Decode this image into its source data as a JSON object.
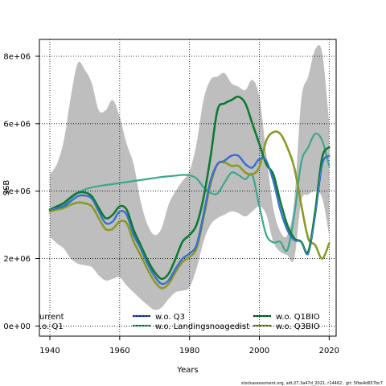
{
  "chart_data": {
    "type": "line",
    "xlabel": "Years",
    "ylabel": "SSB",
    "xlim": [
      1937,
      2022
    ],
    "ylim": [
      -300000,
      8500000
    ],
    "x_ticks": [
      1940,
      1960,
      1980,
      2000,
      2020
    ],
    "x_tick_labels": [
      "1940",
      "1960",
      "1980",
      "2000",
      "2020"
    ],
    "y_ticks": [
      0,
      2000000,
      4000000,
      6000000,
      8000000
    ],
    "y_tick_labels": [
      "0e+00",
      "2e+06",
      "4e+06",
      "6e+06",
      "8e+06"
    ],
    "grid": true,
    "legend_position": "bottom",
    "colors": {
      "band": "#bebebe",
      "current": "#000000",
      "wo_q1": "#000000",
      "wo_q3": "#1c4fc0",
      "wo_landings": "#3aa88e",
      "wo_q1bio": "#0f7a32",
      "wo_q3bio": "#8a9a24"
    },
    "legend": [
      {
        "label": "urrent",
        "color": "#000000"
      },
      {
        "label": ".o. Q1",
        "color": "#000000"
      },
      {
        "label": "w.o. Q3",
        "color": "#1c4fc0"
      },
      {
        "label": "w.o. Landingsnoagedist",
        "color": "#3aa88e"
      },
      {
        "label": "w.o. Q1BIO",
        "color": "#0f7a32"
      },
      {
        "label": "w.o. Q3BIO",
        "color": "#8a9a24"
      }
    ],
    "x": [
      1940,
      1942,
      1944,
      1946,
      1948,
      1950,
      1952,
      1954,
      1956,
      1958,
      1960,
      1962,
      1964,
      1966,
      1968,
      1970,
      1972,
      1974,
      1976,
      1978,
      1980,
      1982,
      1984,
      1986,
      1988,
      1990,
      1992,
      1994,
      1996,
      1998,
      2000,
      2002,
      2004,
      2006,
      2008,
      2010,
      2012,
      2014,
      2016,
      2018,
      2020
    ],
    "band_upper": [
      4500000,
      4800000,
      5500000,
      6800000,
      7800000,
      7600000,
      7200000,
      6400000,
      6400000,
      6700000,
      6200000,
      5400000,
      4800000,
      3700000,
      3000000,
      2700000,
      2900000,
      3600000,
      4000000,
      4300000,
      4600000,
      5400000,
      6700000,
      7300000,
      7400000,
      7500000,
      7200000,
      7100000,
      7000000,
      7300000,
      6800000,
      5100000,
      3500000,
      2800000,
      2700000,
      3700000,
      6700000,
      7400000,
      8200000,
      8100000,
      6000000
    ],
    "band_lower": [
      2650000,
      2450000,
      2300000,
      2000000,
      1850000,
      1800000,
      1750000,
      1500000,
      1350000,
      1400000,
      1450000,
      1200000,
      1000000,
      800000,
      620000,
      480000,
      550000,
      800000,
      1000000,
      1050000,
      1150000,
      1700000,
      2500000,
      3000000,
      3200000,
      3300000,
      3400000,
      3350000,
      3250000,
      3400000,
      3550000,
      3300000,
      2500000,
      2200000,
      2100000,
      2000000,
      3700000,
      3900000,
      4000000,
      3800000,
      2700000
    ],
    "series": [
      {
        "name": "w.o. Landingsnoagedist",
        "values": [
          3400000,
          3480000,
          3600000,
          3780000,
          3950000,
          4050000,
          4110000,
          4150000,
          4180000,
          4210000,
          4240000,
          4270000,
          4300000,
          4330000,
          4360000,
          4390000,
          4420000,
          4440000,
          4460000,
          4480000,
          4470000,
          4380000,
          4120000,
          3950000,
          3930000,
          4250000,
          4550000,
          4480000,
          4350000,
          4480000,
          3550000,
          2700000,
          2480000,
          2500000,
          2250000,
          3300000,
          4850000,
          5300000,
          5700000,
          5500000,
          4750000
        ]
      },
      {
        "name": "w.o. Q3BIO",
        "values": [
          3400000,
          3450000,
          3500000,
          3600000,
          3660000,
          3640000,
          3550000,
          3200000,
          2870000,
          2880000,
          3100000,
          3050000,
          2500000,
          2100000,
          1680000,
          1320000,
          1120000,
          1250000,
          1600000,
          1900000,
          2050000,
          2300000,
          3200000,
          4200000,
          4800000,
          4850000,
          4750000,
          4750000,
          4550000,
          4500000,
          4720000,
          5500000,
          5750000,
          5700000,
          5300000,
          4700000,
          3600000,
          2600000,
          2400000,
          2000000,
          2450000
        ]
      },
      {
        "name": "w.o. Q3",
        "values": [
          3450000,
          3500000,
          3550000,
          3700000,
          3850000,
          3870000,
          3780000,
          3400000,
          3050000,
          3100000,
          3400000,
          3300000,
          2700000,
          2300000,
          1850000,
          1480000,
          1250000,
          1350000,
          1700000,
          2000000,
          2150000,
          2400000,
          3300000,
          4300000,
          4800000,
          4900000,
          5050000,
          5050000,
          4800000,
          4700000,
          4950000,
          4900000,
          4300000,
          3450000,
          2850000,
          2550000,
          2500000,
          2150000,
          3300000,
          4800000,
          5050000
        ]
      },
      {
        "name": "w.o. Q1BIO",
        "values": [
          3450000,
          3550000,
          3650000,
          3820000,
          3950000,
          3960000,
          3850000,
          3500000,
          3200000,
          3300000,
          3550000,
          3450000,
          2850000,
          2400000,
          1950000,
          1600000,
          1400000,
          1550000,
          2000000,
          2500000,
          2700000,
          3000000,
          3800000,
          5000000,
          6400000,
          6600000,
          6700000,
          6800000,
          6600000,
          6000000,
          5400000,
          4800000,
          4500000,
          3700000,
          3000000,
          2600000,
          2500000,
          2200000,
          3400000,
          5000000,
          5300000
        ]
      }
    ]
  },
  "footer_text": "stockassessment.org, sdt:27.3a47d_2021, r14462 , git: 5fbe4d657bc7"
}
